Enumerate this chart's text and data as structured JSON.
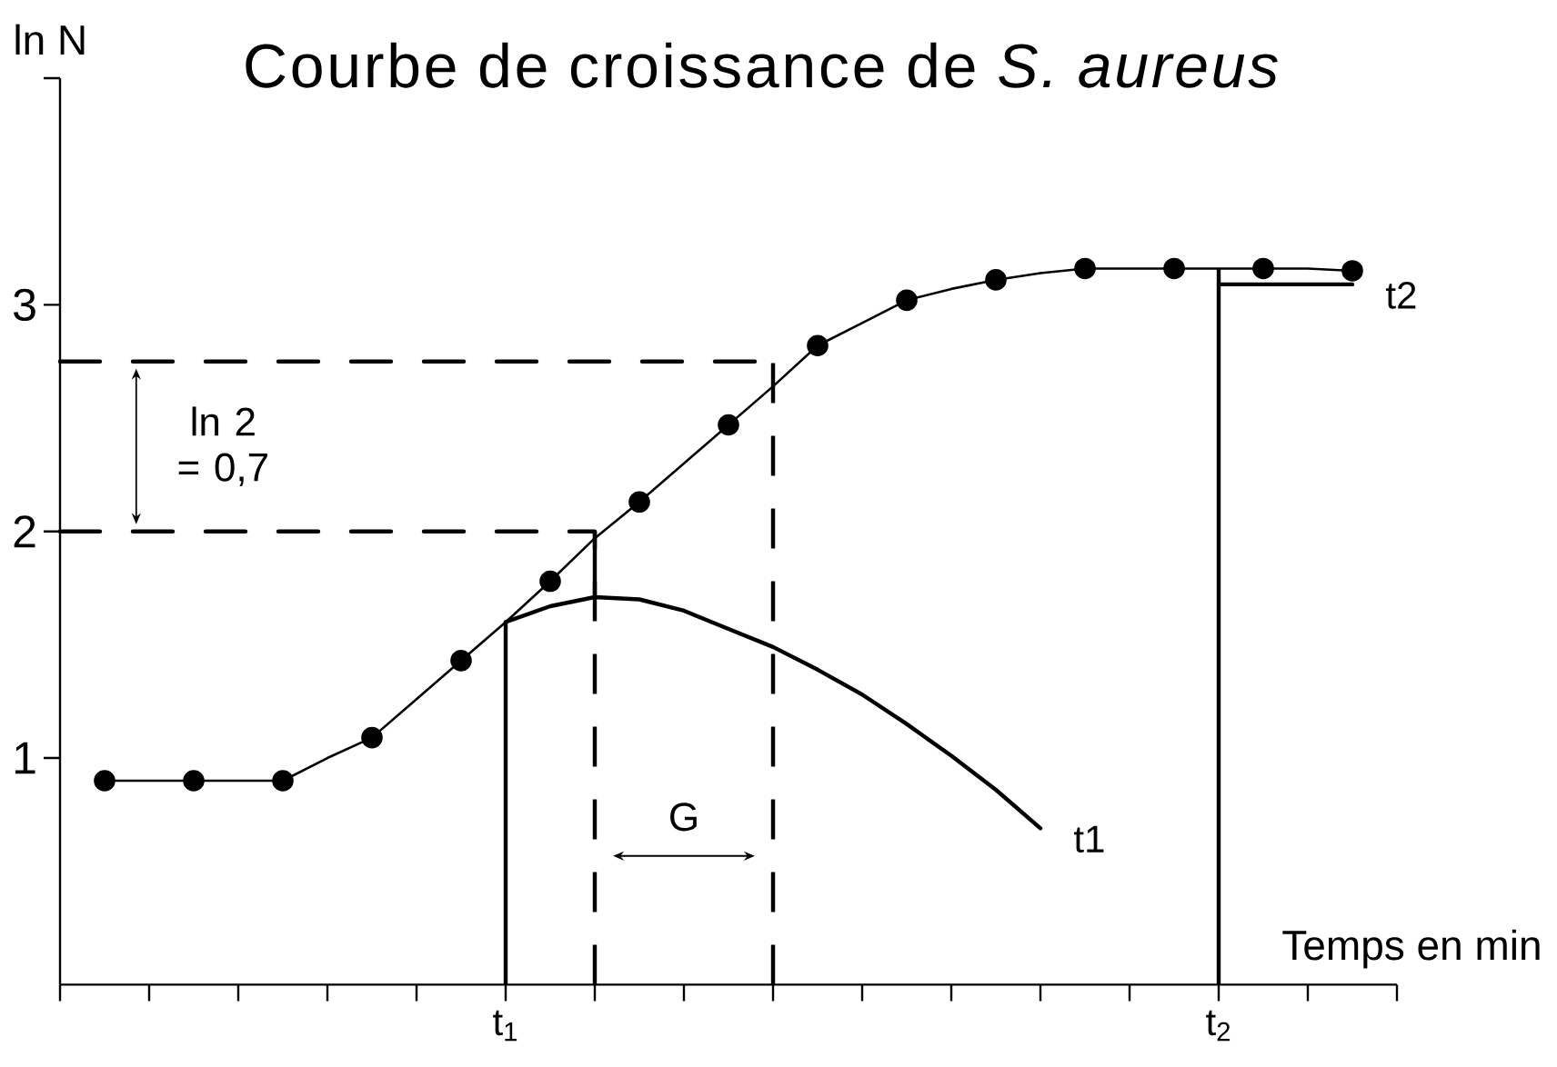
{
  "chart_data": {
    "type": "line",
    "title": "Courbe de croissance de *S. aureus*",
    "xlabel": "Temps en min",
    "ylabel": "ln N",
    "annotations": [
      "ln 2 = 0,7",
      "G"
    ],
    "categories": [
      null,
      null,
      null,
      null,
      null,
      null,
      null,
      null,
      null,
      null,
      "t$_{1}$",
      null,
      null,
      null,
      null,
      null,
      null,
      null,
      null,
      null,
      null,
      null,
      null,
      null,
      null,
      null,
      "t$_{2}$",
      null,
      null,
      null,
      null
    ],
    "ylim": [
      0,
      4
    ],
    "yticks": [
      1,
      2,
      3,
      {
        "value": 4,
        "label": null
      }
    ],
    "series": [
      {
        "color": "#000000",
        "values": [
          null,
          0.9,
          0.9,
          0.9,
          0.9,
          0.9,
          1.0,
          1.09,
          1.26,
          1.43,
          1.6,
          1.78,
          1.97,
          2.13,
          2.3,
          2.47,
          2.64,
          2.82,
          2.92,
          3.02,
          3.07,
          3.11,
          3.14,
          3.16,
          3.16,
          3.16,
          3.16,
          3.16,
          3.16,
          3.15,
          null
        ]
      },
      {
        "type": "scatter",
        "marker": "circle",
        "color": "#000000",
        "values": [
          null,
          0.9,
          null,
          0.9,
          null,
          0.9,
          null,
          1.09,
          null,
          1.43,
          null,
          1.78,
          null,
          2.13,
          null,
          2.47,
          null,
          2.82,
          null,
          3.02,
          null,
          3.11,
          null,
          3.16,
          null,
          3.16,
          null,
          3.16,
          null,
          3.15,
          null
        ]
      },
      {
        "name": "t1",
        "color": "#000000",
        "values": [
          null,
          null,
          null,
          null,
          null,
          null,
          null,
          null,
          null,
          null,
          1.6,
          1.67,
          1.71,
          1.7,
          1.65,
          1.57,
          1.49,
          1.39,
          1.28,
          1.15,
          1.01,
          0.86,
          0.69,
          null,
          null,
          null,
          null,
          null,
          null,
          null,
          null
        ],
        "errors": [
          null,
          null,
          null,
          null,
          null,
          null,
          null,
          null,
          null,
          null,
          [
            0,
            1.6
          ],
          null,
          [
            1.71,
            2.0
          ],
          null,
          null,
          null,
          null,
          null,
          null,
          null,
          null,
          null,
          null,
          null,
          null,
          null,
          null,
          null,
          null,
          null,
          null
        ]
      },
      {
        "name": "t2",
        "color": "#000000",
        "values": [
          null,
          null,
          null,
          null,
          null,
          null,
          null,
          null,
          null,
          null,
          null,
          null,
          null,
          null,
          null,
          null,
          null,
          null,
          null,
          null,
          null,
          null,
          null,
          null,
          null,
          null,
          3.09,
          3.09,
          3.09,
          3.09,
          null
        ],
        "errors": [
          null,
          null,
          null,
          null,
          null,
          null,
          null,
          null,
          null,
          null,
          null,
          null,
          null,
          null,
          null,
          null,
          null,
          null,
          null,
          null,
          null,
          null,
          null,
          null,
          null,
          null,
          [
            0,
            3.16
          ],
          null,
          null,
          null,
          null
        ]
      },
      {
        "line_style": "dashed",
        "color": "#000000",
        "values": [
          2.0,
          2.0,
          2.0,
          2.0,
          2.0,
          2.0,
          2.0,
          2.0,
          2.0,
          2.0,
          2.0,
          2.0,
          2.0,
          null,
          null,
          null,
          null,
          null,
          null,
          null,
          null,
          null,
          null,
          null,
          null,
          null,
          null,
          null,
          null,
          null,
          null
        ],
        "errors": [
          null,
          null,
          null,
          null,
          null,
          null,
          null,
          null,
          null,
          null,
          null,
          null,
          [
            0,
            2.0
          ],
          null,
          null,
          null,
          null,
          null,
          null,
          null,
          null,
          null,
          null,
          null,
          null,
          null,
          null,
          null,
          null,
          null,
          null
        ]
      },
      {
        "line_style": "dashed",
        "color": "#000000",
        "values": [
          2.75,
          2.75,
          2.75,
          2.75,
          2.75,
          2.75,
          2.75,
          2.75,
          2.75,
          2.75,
          2.75,
          2.75,
          2.75,
          2.75,
          2.75,
          2.75,
          2.75,
          null,
          null,
          null,
          null,
          null,
          null,
          null,
          null,
          null,
          null,
          null,
          null,
          null,
          null
        ],
        "errors": [
          null,
          null,
          null,
          null,
          null,
          null,
          null,
          null,
          null,
          null,
          null,
          null,
          null,
          null,
          null,
          null,
          [
            0,
            2.75
          ],
          null,
          null,
          null,
          null,
          null,
          null,
          null,
          null,
          null,
          null,
          null,
          null,
          null,
          null
        ]
      }
    ]
  }
}
